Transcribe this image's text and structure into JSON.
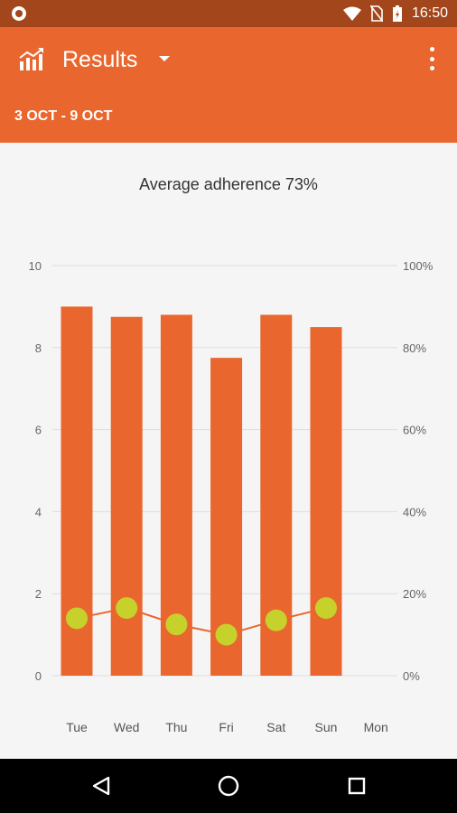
{
  "status_bar": {
    "time": "16:50",
    "icons": [
      "circle-notification-icon",
      "wifi-icon",
      "no-sim-icon",
      "battery-charging-icon"
    ]
  },
  "app_bar": {
    "title": "Results",
    "icon": "chart-bars-icon",
    "date_range": "3 OCT - 9 OCT"
  },
  "summary": {
    "text": "Average adherence 73%"
  },
  "colors": {
    "accent": "#e9672e",
    "status_bar": "#a4461b",
    "bar": "#e9672e",
    "point": "#c6d22b",
    "line": "#e9672e"
  },
  "chart_data": {
    "type": "bar",
    "categories": [
      "Tue",
      "Wed",
      "Thu",
      "Fri",
      "Sat",
      "Sun",
      "Mon"
    ],
    "series": [
      {
        "values": [
          9.0,
          8.75,
          8.8,
          7.75,
          8.8,
          8.5,
          null
        ],
        "axis": "left"
      },
      {
        "values": [
          14,
          16.5,
          12.5,
          10,
          13.5,
          16.5,
          null
        ],
        "axis": "right",
        "type": "line"
      }
    ],
    "left_ticks": [
      "0",
      "2",
      "4",
      "6",
      "8",
      "10"
    ],
    "right_ticks": [
      "0%",
      "20%",
      "40%",
      "60%",
      "80%",
      "100%"
    ],
    "ylim_left": [
      0,
      10
    ],
    "ylim_right": [
      0,
      100
    ],
    "grid": true
  },
  "nav_bar": {
    "buttons": [
      "back-triangle-icon",
      "home-circle-icon",
      "recents-square-icon"
    ]
  }
}
